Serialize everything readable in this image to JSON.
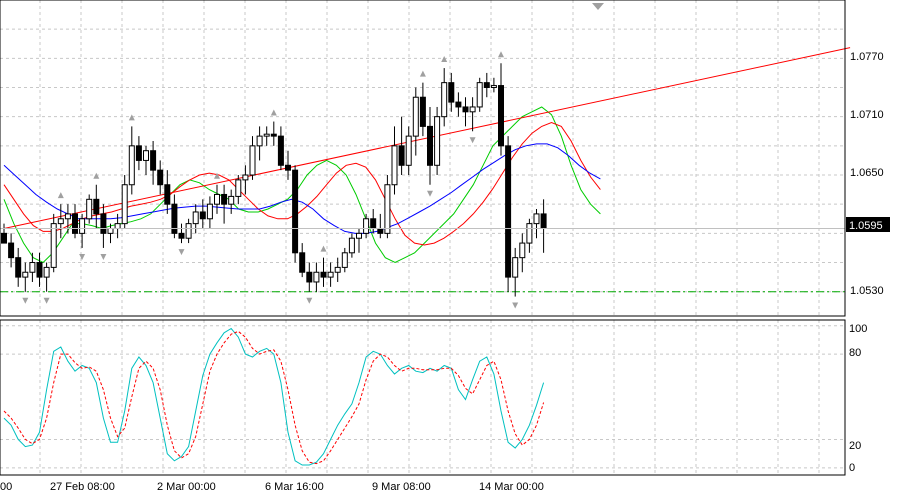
{
  "window": {
    "colors": {
      "background": "#ffffff",
      "grid": "#c8c8c8",
      "axis": "#000000",
      "bull_candle": "#ffffff",
      "bear_candle": "#000000",
      "trendline": "#ff0000",
      "ma_fast": "#00cc00",
      "ma_mid": "#ff0000",
      "ma_slow": "#0000ff",
      "support_line": "#00aa00",
      "stoch_main": "#00c0c0",
      "stoch_signal": "#ff0000",
      "fractal": "#a0a0a0",
      "price_badge": "#000000"
    }
  },
  "price_panel": {
    "y_ticks": [
      "1.0770",
      "1.0710",
      "1.0650",
      "1.0530"
    ],
    "current_price": "1.0595",
    "support_level": "1.0530",
    "scroll_marker_icon": "shift-triangle-icon"
  },
  "indicator_panel": {
    "y_ticks": [
      "100",
      "80",
      "20",
      "0"
    ]
  },
  "x_axis": {
    "labels": [
      "00",
      "27 Feb 08:00",
      "2 Mar 00:00",
      "6 Mar 16:00",
      "9 Mar 08:00",
      "14 Mar 00:00"
    ]
  },
  "chart_data": [
    {
      "type": "candlestick",
      "panel": "price",
      "ylim": [
        1.0505,
        1.083
      ],
      "y_ticks": [
        1.077,
        1.071,
        1.065,
        1.053
      ],
      "current_price": 1.0595,
      "horizontal_line": 1.053,
      "candles": [
        [
          1.059,
          1.06,
          1.058,
          1.058
        ],
        [
          1.058,
          1.059,
          1.0555,
          1.0565
        ],
        [
          1.0565,
          1.0575,
          1.0535,
          1.0545
        ],
        [
          1.0545,
          1.056,
          1.053,
          1.055
        ],
        [
          1.055,
          1.057,
          1.054,
          1.056
        ],
        [
          1.056,
          1.057,
          1.0535,
          1.0545
        ],
        [
          1.0545,
          1.056,
          1.053,
          1.0555
        ],
        [
          1.0555,
          1.061,
          1.055,
          1.06
        ],
        [
          1.06,
          1.062,
          1.0585,
          1.0605
        ],
        [
          1.0605,
          1.062,
          1.059,
          1.061
        ],
        [
          1.061,
          1.062,
          1.0585,
          1.059
        ],
        [
          1.059,
          1.061,
          1.0575,
          1.0605
        ],
        [
          1.0605,
          1.063,
          1.06,
          1.0625
        ],
        [
          1.0625,
          1.064,
          1.0595,
          1.061
        ],
        [
          1.061,
          1.062,
          1.0575,
          1.059
        ],
        [
          1.059,
          1.06,
          1.058,
          1.0595
        ],
        [
          1.0595,
          1.061,
          1.0585,
          1.06
        ],
        [
          1.06,
          1.065,
          1.0595,
          1.064
        ],
        [
          1.064,
          1.07,
          1.063,
          1.068
        ],
        [
          1.068,
          1.069,
          1.0655,
          1.0665
        ],
        [
          1.0665,
          1.068,
          1.065,
          1.0675
        ],
        [
          1.0675,
          1.0685,
          1.064,
          1.0655
        ],
        [
          1.0655,
          1.0665,
          1.063,
          1.064
        ],
        [
          1.064,
          1.0655,
          1.061,
          1.062
        ],
        [
          1.062,
          1.063,
          1.0585,
          1.059
        ],
        [
          1.059,
          1.06,
          1.058,
          1.0585
        ],
        [
          1.0585,
          1.0605,
          1.058,
          1.06
        ],
        [
          1.06,
          1.062,
          1.059,
          1.0612
        ],
        [
          1.0612,
          1.0625,
          1.0595,
          1.0605
        ],
        [
          1.0605,
          1.0628,
          1.0595,
          1.062
        ],
        [
          1.062,
          1.064,
          1.061,
          1.063
        ],
        [
          1.063,
          1.064,
          1.06,
          1.062
        ],
        [
          1.062,
          1.0635,
          1.061,
          1.0628
        ],
        [
          1.0628,
          1.065,
          1.062,
          1.0645
        ],
        [
          1.0645,
          1.066,
          1.063,
          1.065
        ],
        [
          1.065,
          1.069,
          1.0645,
          1.068
        ],
        [
          1.068,
          1.07,
          1.0665,
          1.069
        ],
        [
          1.069,
          1.07,
          1.068,
          1.0692
        ],
        [
          1.0692,
          1.0705,
          1.068,
          1.069
        ],
        [
          1.069,
          1.07,
          1.0655,
          1.066
        ],
        [
          1.066,
          1.0675,
          1.0645,
          1.0655
        ],
        [
          1.0655,
          1.066,
          1.056,
          1.057
        ],
        [
          1.057,
          1.058,
          1.0545,
          1.055
        ],
        [
          1.055,
          1.056,
          1.053,
          1.054
        ],
        [
          1.054,
          1.056,
          1.053,
          1.055
        ],
        [
          1.055,
          1.0565,
          1.0535,
          1.0545
        ],
        [
          1.0545,
          1.056,
          1.0535,
          1.055
        ],
        [
          1.055,
          1.0565,
          1.054,
          1.0555
        ],
        [
          1.0555,
          1.0575,
          1.055,
          1.057
        ],
        [
          1.057,
          1.059,
          1.0565,
          1.0585
        ],
        [
          1.0585,
          1.0595,
          1.057,
          1.059
        ],
        [
          1.059,
          1.061,
          1.0585,
          1.0605
        ],
        [
          1.0605,
          1.0615,
          1.059,
          1.0595
        ],
        [
          1.0595,
          1.061,
          1.0585,
          1.059
        ],
        [
          1.059,
          1.065,
          1.0585,
          1.064
        ],
        [
          1.064,
          1.07,
          1.063,
          1.068
        ],
        [
          1.068,
          1.071,
          1.065,
          1.066
        ],
        [
          1.066,
          1.07,
          1.065,
          1.069
        ],
        [
          1.069,
          1.074,
          1.067,
          1.073
        ],
        [
          1.073,
          1.0745,
          1.069,
          1.07
        ],
        [
          1.07,
          1.072,
          1.064,
          1.066
        ],
        [
          1.066,
          1.072,
          1.065,
          1.071
        ],
        [
          1.071,
          1.076,
          1.07,
          1.0745
        ],
        [
          1.0745,
          1.0755,
          1.0715,
          1.0725
        ],
        [
          1.0725,
          1.0735,
          1.071,
          1.072
        ],
        [
          1.072,
          1.073,
          1.07,
          1.0715
        ],
        [
          1.0715,
          1.073,
          1.0695,
          1.072
        ],
        [
          1.072,
          1.075,
          1.0715,
          1.0745
        ],
        [
          1.0745,
          1.0755,
          1.073,
          1.074
        ],
        [
          1.074,
          1.075,
          1.0735,
          1.0742
        ],
        [
          1.0742,
          1.0765,
          1.067,
          1.068
        ],
        [
          1.068,
          1.069,
          1.053,
          1.0545
        ],
        [
          1.0545,
          1.0575,
          1.0525,
          1.0565
        ],
        [
          1.0565,
          1.059,
          1.055,
          1.058
        ],
        [
          1.058,
          1.0605,
          1.057,
          1.06
        ],
        [
          1.06,
          1.0615,
          1.0585,
          1.061
        ],
        [
          1.061,
          1.0625,
          1.057,
          1.0595
        ]
      ],
      "trendline": {
        "from": [
          0,
          1.0595
        ],
        "to": [
          91,
          1.0781
        ]
      },
      "series": [
        {
          "values": [
            1.0625,
            1.06,
            1.058,
            1.0565,
            1.056,
            1.057,
            1.0585,
            1.06,
            1.06,
            1.0598,
            1.0595,
            1.0598,
            1.06,
            1.0602,
            1.0605,
            1.061,
            1.062,
            1.063,
            1.064,
            1.0645,
            1.0642,
            1.0635,
            1.063,
            1.0625,
            1.0615,
            1.0612,
            1.0612,
            1.0615,
            1.062,
            1.0625,
            1.0635,
            1.065,
            1.066,
            1.0665,
            1.066,
            1.065,
            1.063,
            1.0605,
            1.058,
            1.0565,
            1.056,
            1.0565,
            1.057,
            1.058,
            1.059,
            1.06,
            1.061,
            1.0625,
            1.064,
            1.066,
            1.068,
            1.069,
            1.07,
            1.071,
            1.0715,
            1.072,
            1.0712,
            1.069,
            1.066,
            1.0635,
            1.062,
            1.061
          ]
        },
        {
          "values": [
            1.064,
            1.0625,
            1.061,
            1.0598,
            1.0592,
            1.0592,
            1.0595,
            1.06,
            1.0605,
            1.0608,
            1.061,
            1.0612,
            1.0615,
            1.0618,
            1.062,
            1.0622,
            1.0625,
            1.063,
            1.0638,
            1.0645,
            1.065,
            1.0652,
            1.065,
            1.0645,
            1.0635,
            1.0625,
            1.0615,
            1.0608,
            1.0605,
            1.0605,
            1.061,
            1.0618,
            1.0628,
            1.064,
            1.0652,
            1.066,
            1.0662,
            1.0658,
            1.0645,
            1.0625,
            1.0605,
            1.0588,
            1.058,
            1.0578,
            1.058,
            1.0585,
            1.0592,
            1.06,
            1.061,
            1.0622,
            1.0636,
            1.0652,
            1.0668,
            1.0682,
            1.0693,
            1.07,
            1.0704,
            1.07,
            1.0685,
            1.0665,
            1.0648,
            1.0635
          ]
        },
        {
          "values": [
            1.066,
            1.065,
            1.064,
            1.063,
            1.0622,
            1.0615,
            1.061,
            1.0605,
            1.0605,
            1.0605,
            1.0605,
            1.0606,
            1.0608,
            1.061,
            1.0612,
            1.0614,
            1.0616,
            1.0617,
            1.0618,
            1.0618,
            1.0617,
            1.0616,
            1.0615,
            1.0615,
            1.0615,
            1.0618,
            1.0622,
            1.0625,
            1.0622,
            1.0615,
            1.0605,
            1.0598,
            1.0592,
            1.059,
            1.059,
            1.0592,
            1.0596,
            1.06,
            1.0606,
            1.0612,
            1.0618,
            1.0625,
            1.0632,
            1.064,
            1.0648,
            1.0656,
            1.0663,
            1.067,
            1.0676,
            1.068,
            1.0682,
            1.0682,
            1.0678,
            1.067,
            1.066,
            1.0652,
            1.0646
          ]
        }
      ]
    },
    {
      "type": "line",
      "panel": "stochastic",
      "ylim": [
        -5,
        104
      ],
      "y_ticks": [
        100,
        80,
        20,
        0
      ],
      "series": [
        {
          "values": [
            35,
            30,
            20,
            15,
            16,
            25,
            55,
            82,
            85,
            75,
            68,
            72,
            70,
            60,
            35,
            18,
            18,
            40,
            70,
            78,
            72,
            60,
            35,
            10,
            5,
            8,
            15,
            40,
            65,
            80,
            88,
            95,
            98,
            92,
            80,
            78,
            82,
            84,
            80,
            60,
            25,
            5,
            2,
            2,
            4,
            10,
            20,
            30,
            38,
            45,
            60,
            78,
            82,
            80,
            72,
            66,
            70,
            72,
            68,
            67,
            70,
            68,
            72,
            70,
            55,
            48,
            62,
            75,
            78,
            66,
            40,
            18,
            14,
            20,
            30,
            44,
            60
          ]
        },
        {
          "values": [
            40,
            35,
            28,
            20,
            17,
            20,
            35,
            60,
            80,
            80,
            74,
            70,
            71,
            68,
            55,
            35,
            22,
            28,
            50,
            70,
            75,
            70,
            55,
            30,
            12,
            7,
            10,
            22,
            45,
            68,
            80,
            88,
            94,
            96,
            92,
            84,
            80,
            82,
            83,
            75,
            55,
            30,
            12,
            4,
            3,
            5,
            12,
            20,
            28,
            36,
            45,
            62,
            75,
            80,
            78,
            72,
            68,
            70,
            70,
            69,
            69,
            69,
            70,
            70,
            65,
            56,
            52,
            62,
            72,
            75,
            62,
            40,
            24,
            16,
            20,
            30,
            46
          ]
        }
      ]
    }
  ]
}
